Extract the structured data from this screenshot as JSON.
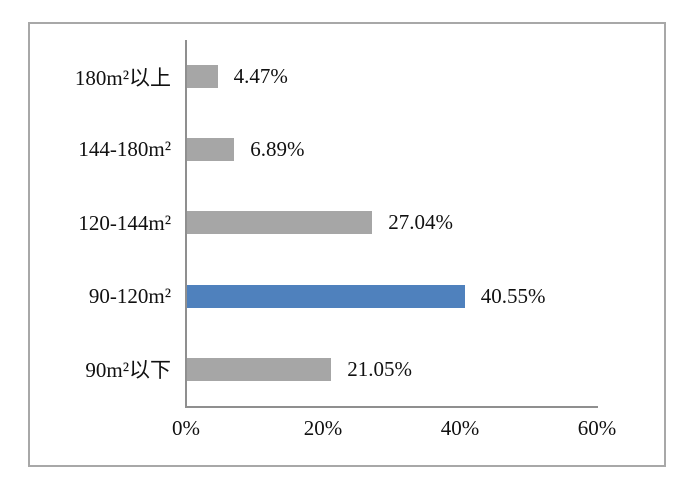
{
  "chart_data": {
    "type": "bar",
    "orientation": "horizontal",
    "title": "",
    "xlabel": "",
    "ylabel": "",
    "categories": [
      "180m²以上",
      "144-180m²",
      "120-144m²",
      "90-120m²",
      "90m²以下"
    ],
    "values": [
      4.47,
      6.89,
      27.04,
      40.55,
      21.05
    ],
    "value_labels": [
      "4.47%",
      "6.89%",
      "27.04%",
      "40.55%",
      "21.05%"
    ],
    "bar_colors": [
      "#a6a6a6",
      "#a6a6a6",
      "#a6a6a6",
      "#4f81bd",
      "#a6a6a6"
    ],
    "x_ticks": [
      "0%",
      "20%",
      "40%",
      "60%"
    ],
    "x_tick_values": [
      0,
      20,
      40,
      60
    ],
    "xlim": [
      0,
      60
    ],
    "grid": false,
    "legend": false,
    "highlighted_category": "90-120m²"
  },
  "colors": {
    "bar_gray": "#a6a6a6",
    "bar_blue": "#4f81bd",
    "axis_line": "#8f8f8f",
    "outer_border": "#a8a8a8",
    "text": "#111111",
    "background": "#ffffff"
  }
}
